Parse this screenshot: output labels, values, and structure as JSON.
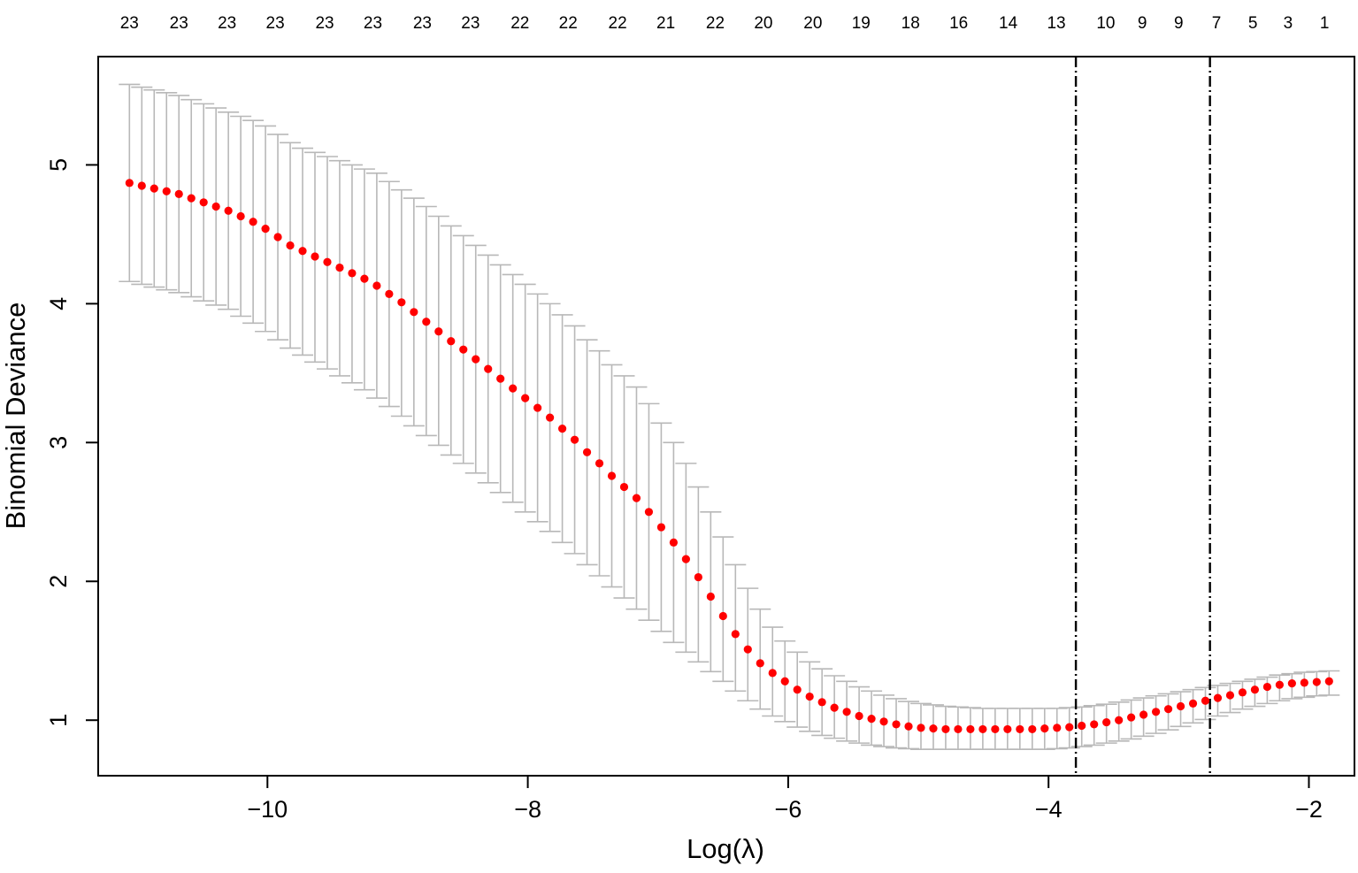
{
  "chart_data": {
    "type": "scatter",
    "title": "",
    "xlabel": "Log(λ)",
    "ylabel": "Binomial Deviance",
    "xlim": [
      -11.3,
      -1.65
    ],
    "ylim": [
      0.6,
      5.78
    ],
    "x_ticks": [
      -10,
      -8,
      -6,
      -4,
      -2
    ],
    "x_tick_labels": [
      "−10",
      "−8",
      "−6",
      "−4",
      "−2"
    ],
    "y_ticks": [
      1,
      2,
      3,
      4,
      5
    ],
    "y_tick_labels": [
      "1",
      "2",
      "3",
      "4",
      "5"
    ],
    "top_axis": {
      "x": [
        -11.06,
        -10.68,
        -10.31,
        -9.94,
        -9.56,
        -9.19,
        -8.81,
        -8.44,
        -8.06,
        -7.69,
        -7.31,
        -6.94,
        -6.56,
        -6.19,
        -5.81,
        -5.44,
        -5.06,
        -4.69,
        -4.31,
        -3.94,
        -3.56,
        -3.28,
        -3.0,
        -2.71,
        -2.43,
        -2.16,
        -1.88
      ],
      "labels": [
        "23",
        "23",
        "23",
        "23",
        "23",
        "23",
        "23",
        "23",
        "22",
        "22",
        "22",
        "21",
        "22",
        "20",
        "20",
        "19",
        "18",
        "16",
        "14",
        "13",
        "10",
        "9",
        "9",
        "7",
        "5",
        "3",
        "1"
      ]
    },
    "vlines": [
      -3.79,
      -2.76
    ],
    "points": {
      "color": "#ff0000",
      "x": [
        -11.06,
        -10.965,
        -10.87,
        -10.775,
        -10.68,
        -10.585,
        -10.49,
        -10.395,
        -10.3,
        -10.205,
        -10.11,
        -10.015,
        -9.92,
        -9.825,
        -9.73,
        -9.635,
        -9.54,
        -9.445,
        -9.35,
        -9.255,
        -9.16,
        -9.065,
        -8.97,
        -8.875,
        -8.78,
        -8.685,
        -8.59,
        -8.495,
        -8.4,
        -8.305,
        -8.21,
        -8.115,
        -8.02,
        -7.925,
        -7.83,
        -7.735,
        -7.64,
        -7.545,
        -7.45,
        -7.355,
        -7.26,
        -7.165,
        -7.07,
        -6.975,
        -6.88,
        -6.785,
        -6.69,
        -6.595,
        -6.5,
        -6.405,
        -6.31,
        -6.215,
        -6.12,
        -6.025,
        -5.93,
        -5.835,
        -5.74,
        -5.645,
        -5.55,
        -5.455,
        -5.36,
        -5.265,
        -5.17,
        -5.075,
        -4.98,
        -4.885,
        -4.79,
        -4.695,
        -4.6,
        -4.505,
        -4.41,
        -4.315,
        -4.22,
        -4.125,
        -4.03,
        -3.935,
        -3.84,
        -3.745,
        -3.65,
        -3.555,
        -3.46,
        -3.365,
        -3.27,
        -3.175,
        -3.08,
        -2.985,
        -2.89,
        -2.795,
        -2.7,
        -2.605,
        -2.51,
        -2.415,
        -2.32,
        -2.225,
        -2.13,
        -2.035,
        -1.94,
        -1.845
      ],
      "y": [
        4.87,
        4.85,
        4.83,
        4.81,
        4.79,
        4.76,
        4.73,
        4.7,
        4.67,
        4.63,
        4.59,
        4.54,
        4.48,
        4.42,
        4.38,
        4.34,
        4.3,
        4.26,
        4.22,
        4.18,
        4.13,
        4.07,
        4.01,
        3.94,
        3.87,
        3.8,
        3.73,
        3.67,
        3.6,
        3.53,
        3.46,
        3.39,
        3.32,
        3.25,
        3.18,
        3.1,
        3.02,
        2.93,
        2.85,
        2.76,
        2.68,
        2.6,
        2.5,
        2.39,
        2.28,
        2.16,
        2.03,
        1.89,
        1.75,
        1.62,
        1.51,
        1.41,
        1.34,
        1.28,
        1.22,
        1.17,
        1.13,
        1.09,
        1.06,
        1.03,
        1.01,
        0.99,
        0.97,
        0.955,
        0.945,
        0.94,
        0.935,
        0.935,
        0.935,
        0.935,
        0.935,
        0.935,
        0.935,
        0.935,
        0.94,
        0.945,
        0.95,
        0.96,
        0.97,
        0.985,
        1.0,
        1.02,
        1.04,
        1.06,
        1.08,
        1.1,
        1.12,
        1.14,
        1.16,
        1.18,
        1.2,
        1.22,
        1.24,
        1.255,
        1.265,
        1.27,
        1.275,
        1.28
      ]
    },
    "error_bars": {
      "color": "#b8b8b8",
      "lower": [
        4.16,
        4.14,
        4.12,
        4.1,
        4.08,
        4.05,
        4.02,
        3.99,
        3.96,
        3.91,
        3.86,
        3.8,
        3.74,
        3.68,
        3.63,
        3.58,
        3.53,
        3.48,
        3.43,
        3.38,
        3.32,
        3.26,
        3.19,
        3.12,
        3.05,
        2.98,
        2.91,
        2.85,
        2.78,
        2.71,
        2.64,
        2.57,
        2.5,
        2.43,
        2.36,
        2.28,
        2.2,
        2.12,
        2.04,
        1.96,
        1.88,
        1.8,
        1.72,
        1.64,
        1.56,
        1.49,
        1.42,
        1.35,
        1.28,
        1.21,
        1.14,
        1.08,
        1.03,
        0.99,
        0.95,
        0.92,
        0.89,
        0.87,
        0.85,
        0.835,
        0.82,
        0.81,
        0.8,
        0.795,
        0.79,
        0.79,
        0.79,
        0.79,
        0.79,
        0.79,
        0.79,
        0.79,
        0.79,
        0.79,
        0.79,
        0.795,
        0.8,
        0.81,
        0.82,
        0.835,
        0.85,
        0.865,
        0.885,
        0.905,
        0.93,
        0.955,
        0.98,
        1.005,
        1.03,
        1.055,
        1.08,
        1.1,
        1.12,
        1.14,
        1.155,
        1.165,
        1.175,
        1.18
      ],
      "upper": [
        5.58,
        5.56,
        5.54,
        5.52,
        5.5,
        5.47,
        5.44,
        5.41,
        5.38,
        5.35,
        5.32,
        5.28,
        5.22,
        5.16,
        5.12,
        5.09,
        5.06,
        5.03,
        5.0,
        4.97,
        4.94,
        4.88,
        4.82,
        4.76,
        4.7,
        4.63,
        4.56,
        4.49,
        4.42,
        4.35,
        4.28,
        4.21,
        4.14,
        4.07,
        4.0,
        3.92,
        3.84,
        3.74,
        3.66,
        3.56,
        3.48,
        3.4,
        3.28,
        3.14,
        3.0,
        2.85,
        2.68,
        2.5,
        2.32,
        2.12,
        1.95,
        1.8,
        1.67,
        1.57,
        1.49,
        1.42,
        1.37,
        1.32,
        1.28,
        1.24,
        1.21,
        1.18,
        1.155,
        1.135,
        1.12,
        1.11,
        1.1,
        1.095,
        1.09,
        1.085,
        1.085,
        1.085,
        1.085,
        1.085,
        1.085,
        1.085,
        1.09,
        1.095,
        1.105,
        1.115,
        1.13,
        1.145,
        1.16,
        1.175,
        1.19,
        1.205,
        1.22,
        1.235,
        1.25,
        1.265,
        1.28,
        1.295,
        1.31,
        1.325,
        1.335,
        1.345,
        1.35,
        1.355
      ]
    }
  }
}
